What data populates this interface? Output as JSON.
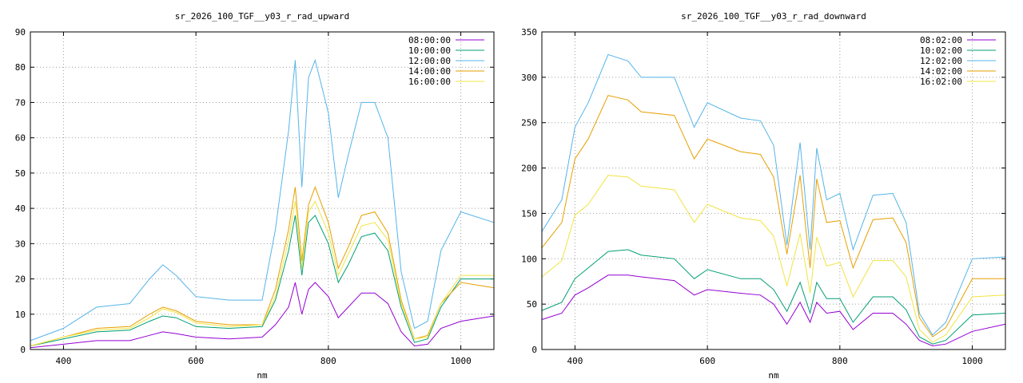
{
  "chart_data": [
    {
      "type": "line",
      "title": "sr_2026_100_TGF__y03_r_rad_upward",
      "xlabel": "nm",
      "ylabel": "",
      "xlim": [
        350,
        1050
      ],
      "ylim": [
        0,
        90
      ],
      "xticks": [
        400,
        600,
        800,
        1000
      ],
      "yticks": [
        0,
        10,
        20,
        30,
        40,
        50,
        60,
        70,
        80,
        90
      ],
      "grid": true,
      "legend_position": "top-right",
      "series": [
        {
          "name": "08:00:00",
          "color": "#9400d3",
          "x": [
            350,
            400,
            450,
            500,
            530,
            550,
            570,
            600,
            650,
            700,
            720,
            740,
            750,
            760,
            770,
            780,
            800,
            815,
            830,
            850,
            870,
            890,
            910,
            930,
            950,
            970,
            1000,
            1050
          ],
          "y": [
            0.5,
            1.5,
            2.5,
            2.5,
            4,
            5,
            4.5,
            3.5,
            3,
            3.5,
            7,
            12,
            19,
            10,
            17,
            19,
            15,
            9,
            12,
            16,
            16,
            13,
            5,
            1,
            1.5,
            6,
            8,
            9.5
          ]
        },
        {
          "name": "10:00:00",
          "color": "#009e73",
          "x": [
            350,
            400,
            450,
            500,
            530,
            550,
            570,
            600,
            650,
            700,
            720,
            740,
            750,
            760,
            770,
            780,
            800,
            815,
            830,
            850,
            870,
            890,
            910,
            930,
            950,
            970,
            1000,
            1050
          ],
          "y": [
            1,
            3,
            5,
            5.5,
            8,
            9.5,
            9,
            6.5,
            6,
            6.5,
            14,
            28,
            38,
            21,
            36,
            38,
            30,
            19,
            24,
            32,
            33,
            28,
            12,
            2,
            3,
            12,
            20,
            20
          ]
        },
        {
          "name": "12:00:00",
          "color": "#56b4e9",
          "x": [
            350,
            400,
            450,
            500,
            530,
            550,
            570,
            600,
            650,
            700,
            720,
            740,
            750,
            760,
            770,
            780,
            800,
            815,
            830,
            850,
            870,
            890,
            910,
            930,
            950,
            970,
            1000,
            1050
          ],
          "y": [
            2.5,
            6,
            12,
            13,
            20,
            24,
            21,
            15,
            14,
            14,
            34,
            62,
            82,
            46,
            77,
            82,
            67,
            43,
            55,
            70,
            70,
            60,
            22,
            6,
            8,
            28,
            39,
            36
          ]
        },
        {
          "name": "14:00:00",
          "color": "#e69f00",
          "x": [
            350,
            400,
            450,
            500,
            530,
            550,
            570,
            600,
            650,
            700,
            720,
            740,
            750,
            760,
            770,
            780,
            800,
            815,
            830,
            850,
            870,
            890,
            910,
            930,
            950,
            970,
            1000,
            1050
          ],
          "y": [
            1,
            3.5,
            6,
            6.5,
            10,
            12,
            11,
            8,
            7,
            7,
            17,
            34,
            46,
            25,
            41,
            46,
            36,
            23,
            29,
            38,
            39,
            33,
            14,
            3,
            4,
            13,
            19,
            17.5
          ]
        },
        {
          "name": "16:00:00",
          "color": "#f0e442",
          "x": [
            350,
            400,
            450,
            500,
            530,
            550,
            570,
            600,
            650,
            700,
            720,
            740,
            750,
            760,
            770,
            780,
            800,
            815,
            830,
            850,
            870,
            890,
            910,
            930,
            950,
            970,
            1000,
            1050
          ],
          "y": [
            1,
            3.5,
            5.5,
            6,
            9,
            11.5,
            10.5,
            7.5,
            6.5,
            7,
            15,
            31,
            42,
            23,
            39,
            42,
            33,
            21,
            27,
            35,
            36,
            31,
            13,
            3,
            3.5,
            13,
            21,
            21
          ]
        }
      ]
    },
    {
      "type": "line",
      "title": "sr_2026_100_TGF__y03_r_rad_downward",
      "xlabel": "nm",
      "ylabel": "",
      "xlim": [
        350,
        1050
      ],
      "ylim": [
        0,
        350
      ],
      "xticks": [
        400,
        600,
        800,
        1000
      ],
      "yticks": [
        0,
        50,
        100,
        150,
        200,
        250,
        300,
        350
      ],
      "grid": true,
      "legend_position": "top-right",
      "series": [
        {
          "name": "08:02:00",
          "color": "#9400d3",
          "x": [
            350,
            380,
            400,
            420,
            450,
            480,
            500,
            550,
            580,
            600,
            650,
            680,
            700,
            720,
            740,
            755,
            765,
            780,
            800,
            820,
            850,
            880,
            900,
            920,
            940,
            960,
            1000,
            1050
          ],
          "y": [
            33,
            40,
            60,
            68,
            82,
            82,
            80,
            76,
            60,
            66,
            62,
            60,
            50,
            28,
            52,
            30,
            52,
            40,
            42,
            22,
            40,
            40,
            28,
            10,
            4,
            6,
            20,
            28
          ]
        },
        {
          "name": "10:02:00",
          "color": "#009e73",
          "x": [
            350,
            380,
            400,
            420,
            450,
            480,
            500,
            550,
            580,
            600,
            650,
            680,
            700,
            720,
            740,
            755,
            765,
            780,
            800,
            820,
            850,
            880,
            900,
            920,
            940,
            960,
            1000,
            1050
          ],
          "y": [
            43,
            52,
            78,
            90,
            108,
            110,
            104,
            100,
            78,
            88,
            78,
            78,
            66,
            42,
            74,
            40,
            74,
            56,
            56,
            30,
            58,
            58,
            44,
            14,
            6,
            10,
            38,
            40
          ]
        },
        {
          "name": "12:02:00",
          "color": "#56b4e9",
          "x": [
            350,
            380,
            400,
            420,
            450,
            480,
            500,
            550,
            580,
            600,
            650,
            680,
            700,
            720,
            740,
            755,
            765,
            780,
            800,
            820,
            850,
            880,
            900,
            920,
            940,
            960,
            1000,
            1050
          ],
          "y": [
            130,
            165,
            245,
            272,
            325,
            318,
            300,
            300,
            245,
            272,
            255,
            252,
            225,
            115,
            228,
            110,
            222,
            165,
            172,
            110,
            170,
            172,
            140,
            40,
            16,
            30,
            100,
            102
          ]
        },
        {
          "name": "14:02:00",
          "color": "#e69f00",
          "x": [
            350,
            380,
            400,
            420,
            450,
            480,
            500,
            550,
            580,
            600,
            650,
            680,
            700,
            720,
            740,
            755,
            765,
            780,
            800,
            820,
            850,
            880,
            900,
            920,
            940,
            960,
            1000,
            1050
          ],
          "y": [
            112,
            140,
            210,
            232,
            280,
            275,
            262,
            258,
            210,
            232,
            218,
            215,
            190,
            105,
            192,
            90,
            188,
            140,
            142,
            90,
            143,
            145,
            118,
            35,
            14,
            24,
            78,
            78
          ]
        },
        {
          "name": "16:02:00",
          "color": "#f0e442",
          "x": [
            350,
            380,
            400,
            420,
            450,
            480,
            500,
            550,
            580,
            600,
            650,
            680,
            700,
            720,
            740,
            755,
            765,
            780,
            800,
            820,
            850,
            880,
            900,
            920,
            940,
            960,
            1000,
            1050
          ],
          "y": [
            80,
            98,
            148,
            160,
            192,
            190,
            180,
            176,
            140,
            160,
            145,
            142,
            125,
            70,
            128,
            62,
            124,
            92,
            96,
            58,
            98,
            98,
            80,
            22,
            8,
            16,
            58,
            60
          ]
        }
      ]
    }
  ]
}
